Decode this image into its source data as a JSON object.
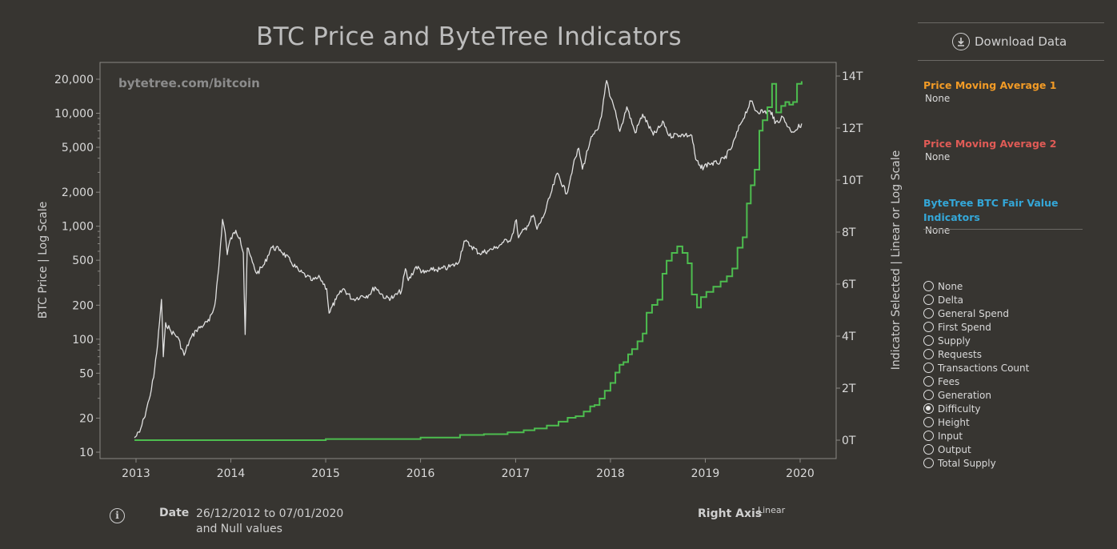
{
  "chart_data": {
    "type": "line",
    "title": "BTC Price and ByteTree Indicators",
    "watermark": "bytetree.com/bitcoin",
    "ylabel_left": "BTC Price | Log Scale",
    "ylabel_right": "Indicator Selected | Linear or Log Scale",
    "left_scale": "log",
    "right_scale": "linear",
    "ylim_left": [
      10,
      23000
    ],
    "ylim_right": [
      0,
      14000000000000
    ],
    "x_ticks": [
      "2013",
      "2014",
      "2015",
      "2016",
      "2017",
      "2018",
      "2019",
      "2020"
    ],
    "y_left_ticks": [
      {
        "value": 20000,
        "label": "20,000"
      },
      {
        "value": 10000,
        "label": "10,000"
      },
      {
        "value": 5000,
        "label": "5,000"
      },
      {
        "value": 2000,
        "label": "2,000"
      },
      {
        "value": 1000,
        "label": "1,000"
      },
      {
        "value": 500,
        "label": "500"
      },
      {
        "value": 200,
        "label": "200"
      },
      {
        "value": 100,
        "label": "100"
      },
      {
        "value": 50,
        "label": "50"
      },
      {
        "value": 20,
        "label": "20"
      },
      {
        "value": 10,
        "label": "10"
      }
    ],
    "y_right_ticks": [
      {
        "value": 14000000000000,
        "label": "14T"
      },
      {
        "value": 12000000000000,
        "label": "12T"
      },
      {
        "value": 10000000000000,
        "label": "10T"
      },
      {
        "value": 8000000000000,
        "label": "8T"
      },
      {
        "value": 6000000000000,
        "label": "6T"
      },
      {
        "value": 4000000000000,
        "label": "4T"
      },
      {
        "value": 2000000000000,
        "label": "2T"
      },
      {
        "value": 0,
        "label": "0T"
      }
    ],
    "series": [
      {
        "color": "#e0e0e0",
        "axis": "left",
        "points": [
          [
            "2012-12-26",
            13.4
          ],
          [
            "2013-01-15",
            15
          ],
          [
            "2013-02-01",
            20
          ],
          [
            "2013-02-20",
            29
          ],
          [
            "2013-03-10",
            46
          ],
          [
            "2013-03-25",
            90
          ],
          [
            "2013-04-09",
            225
          ],
          [
            "2013-04-16",
            70
          ],
          [
            "2013-04-25",
            140
          ],
          [
            "2013-05-15",
            118
          ],
          [
            "2013-06-10",
            105
          ],
          [
            "2013-07-05",
            72
          ],
          [
            "2013-07-25",
            96
          ],
          [
            "2013-08-20",
            120
          ],
          [
            "2013-09-20",
            135
          ],
          [
            "2013-10-10",
            145
          ],
          [
            "2013-10-31",
            200
          ],
          [
            "2013-11-15",
            420
          ],
          [
            "2013-11-30",
            1150
          ],
          [
            "2013-12-10",
            880
          ],
          [
            "2013-12-18",
            560
          ],
          [
            "2013-12-28",
            740
          ],
          [
            "2014-01-20",
            920
          ],
          [
            "2014-02-05",
            790
          ],
          [
            "2014-02-18",
            580
          ],
          [
            "2014-02-25",
            110
          ],
          [
            "2014-03-05",
            640
          ],
          [
            "2014-03-25",
            480
          ],
          [
            "2014-04-11",
            380
          ],
          [
            "2014-05-10",
            460
          ],
          [
            "2014-06-05",
            650
          ],
          [
            "2014-07-10",
            620
          ],
          [
            "2014-08-18",
            490
          ],
          [
            "2014-09-20",
            400
          ],
          [
            "2014-10-20",
            360
          ],
          [
            "2014-11-10",
            330
          ],
          [
            "2014-12-10",
            350
          ],
          [
            "2015-01-05",
            280
          ],
          [
            "2015-01-14",
            170
          ],
          [
            "2015-02-10",
            225
          ],
          [
            "2015-03-10",
            280
          ],
          [
            "2015-04-15",
            225
          ],
          [
            "2015-05-15",
            240
          ],
          [
            "2015-06-15",
            245
          ],
          [
            "2015-07-10",
            290
          ],
          [
            "2015-08-20",
            230
          ],
          [
            "2015-09-20",
            235
          ],
          [
            "2015-10-20",
            270
          ],
          [
            "2015-11-04",
            420
          ],
          [
            "2015-11-15",
            330
          ],
          [
            "2015-12-15",
            440
          ],
          [
            "2016-01-15",
            385
          ],
          [
            "2016-02-15",
            410
          ],
          [
            "2016-03-15",
            415
          ],
          [
            "2016-04-15",
            430
          ],
          [
            "2016-05-25",
            470
          ],
          [
            "2016-06-17",
            740
          ],
          [
            "2016-07-15",
            665
          ],
          [
            "2016-08-15",
            575
          ],
          [
            "2016-09-15",
            605
          ],
          [
            "2016-10-15",
            640
          ],
          [
            "2016-11-15",
            720
          ],
          [
            "2016-12-15",
            780
          ],
          [
            "2017-01-04",
            1140
          ],
          [
            "2017-01-12",
            790
          ],
          [
            "2017-02-15",
            1010
          ],
          [
            "2017-03-10",
            1250
          ],
          [
            "2017-03-24",
            940
          ],
          [
            "2017-04-20",
            1250
          ],
          [
            "2017-05-20",
            2050
          ],
          [
            "2017-06-11",
            2950
          ],
          [
            "2017-07-16",
            1930
          ],
          [
            "2017-08-10",
            3400
          ],
          [
            "2017-09-01",
            4900
          ],
          [
            "2017-09-15",
            3200
          ],
          [
            "2017-10-15",
            5700
          ],
          [
            "2017-11-15",
            7300
          ],
          [
            "2017-12-01",
            10800
          ],
          [
            "2017-12-17",
            19500
          ],
          [
            "2017-12-29",
            14200
          ],
          [
            "2018-01-16",
            11000
          ],
          [
            "2018-02-06",
            6900
          ],
          [
            "2018-03-05",
            11400
          ],
          [
            "2018-04-06",
            6700
          ],
          [
            "2018-05-05",
            9800
          ],
          [
            "2018-06-15",
            6400
          ],
          [
            "2018-07-25",
            8300
          ],
          [
            "2018-08-15",
            6300
          ],
          [
            "2018-09-15",
            6500
          ],
          [
            "2018-10-15",
            6400
          ],
          [
            "2018-11-10",
            6350
          ],
          [
            "2018-11-25",
            3900
          ],
          [
            "2018-12-15",
            3250
          ],
          [
            "2019-01-15",
            3600
          ],
          [
            "2019-02-15",
            3600
          ],
          [
            "2019-03-15",
            3950
          ],
          [
            "2019-04-15",
            5100
          ],
          [
            "2019-05-15",
            7900
          ],
          [
            "2019-06-26",
            12800
          ],
          [
            "2019-07-15",
            10500
          ],
          [
            "2019-08-15",
            10300
          ],
          [
            "2019-09-15",
            10200
          ],
          [
            "2019-09-26",
            8100
          ],
          [
            "2019-10-26",
            9300
          ],
          [
            "2019-11-25",
            7000
          ],
          [
            "2019-12-15",
            7100
          ],
          [
            "2020-01-07",
            8100
          ]
        ]
      },
      {
        "color": "#4dbd4f",
        "axis": "right",
        "step": true,
        "points": [
          [
            "2012-12-26",
            0
          ],
          [
            "2015-01-01",
            44000000000.0
          ],
          [
            "2016-01-01",
            100000000000.0
          ],
          [
            "2016-06-01",
            200000000000.0
          ],
          [
            "2016-09-01",
            230000000000.0
          ],
          [
            "2016-12-01",
            300000000000.0
          ],
          [
            "2017-02-01",
            380000000000.0
          ],
          [
            "2017-03-15",
            450000000000.0
          ],
          [
            "2017-05-01",
            560000000000.0
          ],
          [
            "2017-06-15",
            710000000000.0
          ],
          [
            "2017-07-20",
            860000000000.0
          ],
          [
            "2017-08-20",
            920000000000.0
          ],
          [
            "2017-09-20",
            1100000000000.0
          ],
          [
            "2017-10-15",
            1300000000000.0
          ],
          [
            "2017-11-01",
            1350000000000.0
          ],
          [
            "2017-11-20",
            1600000000000.0
          ],
          [
            "2017-12-10",
            1900000000000.0
          ],
          [
            "2018-01-01",
            2200000000000.0
          ],
          [
            "2018-01-20",
            2600000000000.0
          ],
          [
            "2018-02-05",
            2900000000000.0
          ],
          [
            "2018-02-20",
            3000000000000.0
          ],
          [
            "2018-03-10",
            3300000000000.0
          ],
          [
            "2018-03-25",
            3500000000000.0
          ],
          [
            "2018-04-15",
            3800000000000.0
          ],
          [
            "2018-05-05",
            4100000000000.0
          ],
          [
            "2018-05-20",
            4900000000000.0
          ],
          [
            "2018-06-10",
            5200000000000.0
          ],
          [
            "2018-07-01",
            5400000000000.0
          ],
          [
            "2018-07-20",
            6400000000000.0
          ],
          [
            "2018-08-05",
            6900000000000.0
          ],
          [
            "2018-08-25",
            7200000000000.0
          ],
          [
            "2018-09-15",
            7450000000000.0
          ],
          [
            "2018-10-05",
            7200000000000.0
          ],
          [
            "2018-10-25",
            6800000000000.0
          ],
          [
            "2018-11-10",
            5600000000000.0
          ],
          [
            "2018-11-30",
            5100000000000.0
          ],
          [
            "2018-12-15",
            5500000000000.0
          ],
          [
            "2019-01-05",
            5700000000000.0
          ],
          [
            "2019-02-01",
            5900000000000.0
          ],
          [
            "2019-03-01",
            6100000000000.0
          ],
          [
            "2019-03-25",
            6300000000000.0
          ],
          [
            "2019-04-15",
            6600000000000.0
          ],
          [
            "2019-05-05",
            7400000000000.0
          ],
          [
            "2019-05-25",
            7800000000000.0
          ],
          [
            "2019-06-10",
            9100000000000.0
          ],
          [
            "2019-06-25",
            9800000000000.0
          ],
          [
            "2019-07-10",
            10400000000000.0
          ],
          [
            "2019-07-28",
            11900000000000.0
          ],
          [
            "2019-08-10",
            12300000000000.0
          ],
          [
            "2019-08-28",
            12800000000000.0
          ],
          [
            "2019-09-15",
            13700000000000.0
          ],
          [
            "2019-10-01",
            12600000000000.0
          ],
          [
            "2019-10-20",
            12850000000000.0
          ],
          [
            "2019-11-05",
            13000000000000.0
          ],
          [
            "2019-11-20",
            12900000000000.0
          ],
          [
            "2019-12-05",
            13000000000000.0
          ],
          [
            "2019-12-20",
            13700000000000.0
          ],
          [
            "2020-01-07",
            13800000000000.0
          ]
        ]
      }
    ]
  },
  "panel": {
    "download_label": "Download Data",
    "params": [
      {
        "title": "Price Moving Average 1",
        "value": "None",
        "color": "#f29b26"
      },
      {
        "title": "Price Moving Average 2",
        "value": "None",
        "color": "#e05b56"
      },
      {
        "title": "ByteTree BTC Fair Value Indicators",
        "value": "None",
        "color": "#34a7d8"
      }
    ],
    "indicator_options": [
      "None",
      "Delta",
      "General Spend",
      "First Spend",
      "Supply",
      "Requests",
      "Transactions Count",
      "Fees",
      "Generation",
      "Difficulty",
      "Height",
      "Input",
      "Output",
      "Total Supply"
    ],
    "indicator_selected": "Difficulty"
  },
  "footer": {
    "date_label": "Date",
    "date_range_line1": "26/12/2012 to 07/01/2020",
    "date_range_line2": "and Null values",
    "right_axis_label": "Right Axis",
    "right_axis_mode": "Linear"
  }
}
